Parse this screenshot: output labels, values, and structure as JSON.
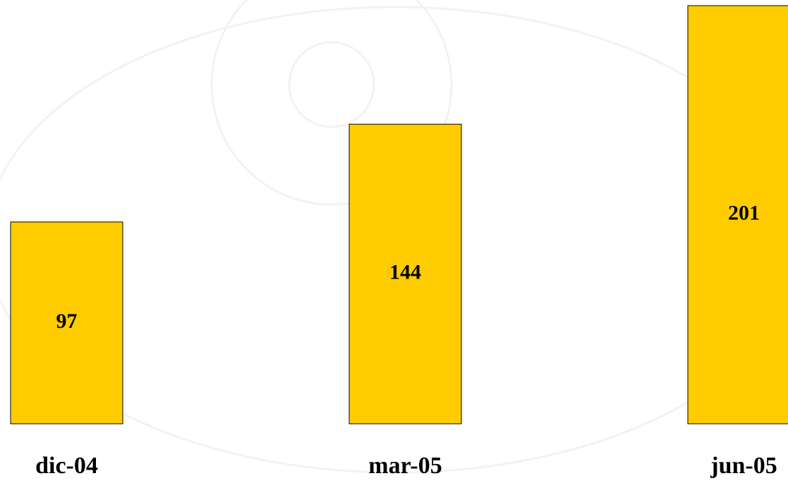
{
  "chart_data": {
    "type": "bar",
    "categories": [
      "dic-04",
      "mar-05",
      "jun-05"
    ],
    "values": [
      97,
      144,
      201
    ],
    "color": "#ffcc00"
  }
}
